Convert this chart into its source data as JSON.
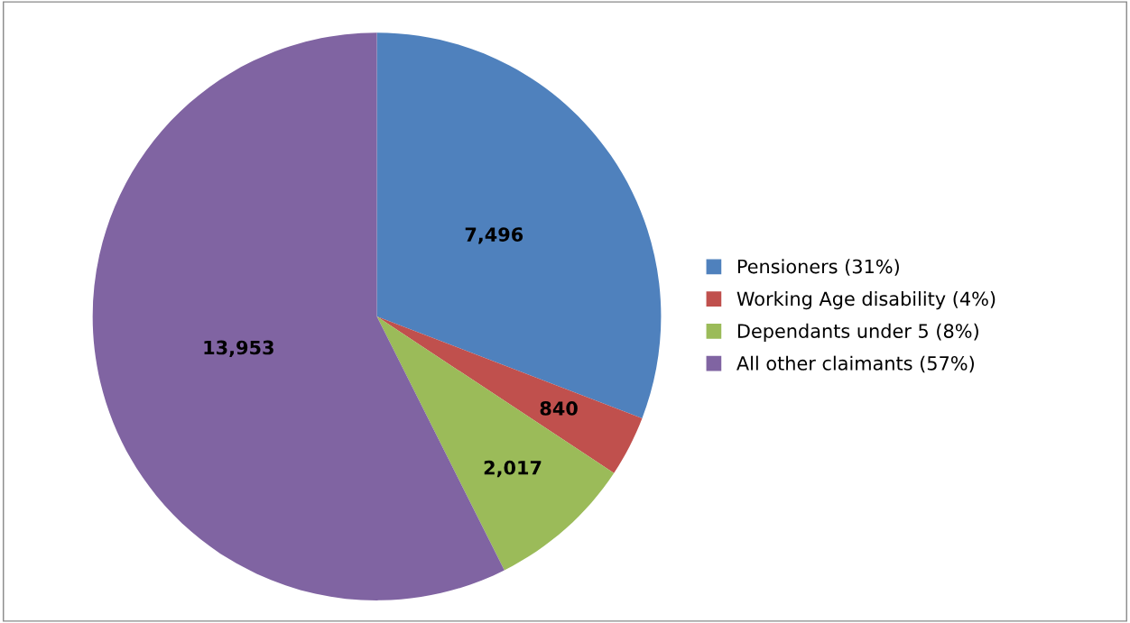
{
  "chart_data": {
    "type": "pie",
    "categories": [
      "Pensioners (31%)",
      "Working Age disability (4%)",
      "Dependants under 5 (8%)",
      "All other claimants (57%)"
    ],
    "values": [
      7496,
      840,
      2017,
      13953
    ],
    "colors": [
      "#4f81bd",
      "#c0504d",
      "#9bbb59",
      "#8064a2"
    ],
    "value_labels": [
      "7,496",
      "840",
      "2,017",
      "13,953"
    ],
    "legend": "right"
  }
}
